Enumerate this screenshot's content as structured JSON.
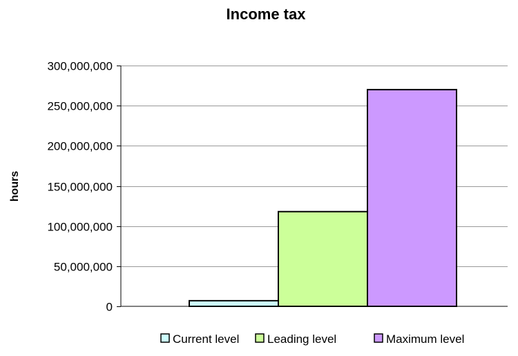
{
  "chart_data": {
    "type": "bar",
    "title": "Income tax",
    "xlabel": "",
    "ylabel": "hours",
    "ylim": [
      0,
      300000000
    ],
    "yticks": [
      0,
      50000000,
      100000000,
      150000000,
      200000000,
      250000000,
      300000000
    ],
    "ytick_labels": [
      "0",
      "50,000,000",
      "100,000,000",
      "150,000,000",
      "200,000,000",
      "250,000,000",
      "300,000,000"
    ],
    "grid": true,
    "legend_position": "bottom",
    "categories": [
      ""
    ],
    "series": [
      {
        "name": "Current level",
        "values": [
          7000000
        ],
        "color": "#ccffff"
      },
      {
        "name": "Leading level",
        "values": [
          118000000
        ],
        "color": "#ccff99"
      },
      {
        "name": "Maximum level",
        "values": [
          270000000
        ],
        "color": "#cc99ff"
      }
    ]
  }
}
